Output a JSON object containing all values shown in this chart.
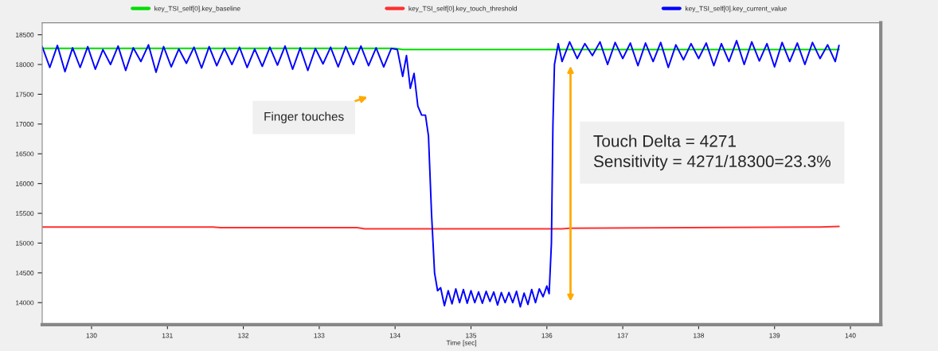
{
  "chart_data": {
    "type": "line",
    "xlabel": "Time [sec]",
    "xlim": [
      129.35,
      140.4
    ],
    "xticks": [
      130,
      131,
      132,
      133,
      134,
      135,
      136,
      137,
      138,
      139,
      140
    ],
    "ylim": [
      13630,
      18700
    ],
    "yticks": [
      14000,
      14500,
      15000,
      15500,
      16000,
      16500,
      17000,
      17500,
      18000,
      18500
    ],
    "grid": false,
    "legend": "top",
    "marker": "none",
    "line_style": "solid",
    "series": [
      {
        "name": "key_TSI_self[0].key_baseline",
        "color": "#00dd00",
        "x": [
          129.35,
          134.0,
          134.1,
          139.85
        ],
        "values": [
          18270,
          18270,
          18250,
          18250
        ]
      },
      {
        "name": "key_TSI_self[0].key_touch_threshold",
        "color": "#ff3030",
        "x": [
          129.35,
          131.6,
          131.7,
          133.5,
          133.6,
          136.2,
          136.3,
          139.6,
          139.85
        ],
        "values": [
          15270,
          15270,
          15260,
          15260,
          15240,
          15240,
          15250,
          15270,
          15280
        ]
      },
      {
        "name": "key_TSI_self[0].key_current_value",
        "color": "#0000ff",
        "x": [
          129.35,
          129.45,
          129.55,
          129.65,
          129.75,
          129.85,
          129.95,
          130.05,
          130.15,
          130.25,
          130.35,
          130.45,
          130.55,
          130.65,
          130.75,
          130.85,
          130.95,
          131.05,
          131.15,
          131.25,
          131.35,
          131.45,
          131.55,
          131.65,
          131.75,
          131.85,
          131.95,
          132.05,
          132.15,
          132.25,
          132.35,
          132.45,
          132.55,
          132.65,
          132.75,
          132.85,
          132.95,
          133.05,
          133.15,
          133.25,
          133.35,
          133.45,
          133.55,
          133.65,
          133.75,
          133.85,
          133.95,
          134.03,
          134.1,
          134.15,
          134.2,
          134.25,
          134.3,
          134.35,
          134.4,
          134.44,
          134.48,
          134.52,
          134.56,
          134.6,
          134.65,
          134.7,
          134.75,
          134.8,
          134.85,
          134.9,
          134.95,
          135.0,
          135.05,
          135.1,
          135.15,
          135.2,
          135.25,
          135.3,
          135.35,
          135.4,
          135.45,
          135.5,
          135.55,
          135.6,
          135.65,
          135.7,
          135.75,
          135.8,
          135.85,
          135.9,
          135.95,
          136.0,
          136.03,
          136.06,
          136.08,
          136.1,
          136.15,
          136.2,
          136.3,
          136.4,
          136.5,
          136.6,
          136.7,
          136.8,
          136.9,
          137.0,
          137.1,
          137.2,
          137.3,
          137.4,
          137.5,
          137.6,
          137.7,
          137.8,
          137.9,
          138.0,
          138.1,
          138.2,
          138.3,
          138.4,
          138.5,
          138.6,
          138.7,
          138.8,
          138.9,
          139.0,
          139.1,
          139.2,
          139.3,
          139.4,
          139.5,
          139.6,
          139.7,
          139.8,
          139.85
        ],
        "values": [
          18300,
          17950,
          18320,
          17880,
          18280,
          17950,
          18300,
          17920,
          18250,
          18000,
          18310,
          17900,
          18280,
          18050,
          18330,
          17870,
          18300,
          17960,
          18260,
          18020,
          18290,
          17940,
          18300,
          17980,
          18270,
          18000,
          18290,
          17950,
          18260,
          17970,
          18290,
          17990,
          18310,
          17920,
          18280,
          17900,
          18270,
          18010,
          18290,
          17960,
          18300,
          18000,
          18310,
          17980,
          18280,
          17960,
          18270,
          18250,
          17800,
          18150,
          17600,
          17850,
          17300,
          17150,
          17150,
          16800,
          15500,
          14500,
          14200,
          14250,
          13950,
          14200,
          13980,
          14230,
          14000,
          14220,
          13990,
          14200,
          14000,
          14180,
          13990,
          14190,
          14020,
          14180,
          13960,
          14170,
          14000,
          14170,
          14000,
          14190,
          13930,
          14160,
          13970,
          14220,
          14000,
          14230,
          14100,
          14280,
          14150,
          15000,
          17000,
          18000,
          18350,
          18050,
          18380,
          18100,
          18350,
          18150,
          18380,
          18000,
          18370,
          18100,
          18360,
          17980,
          18360,
          18050,
          18370,
          17950,
          18330,
          18080,
          18350,
          18100,
          18360,
          17980,
          18350,
          18050,
          18400,
          18000,
          18380,
          18060,
          18350,
          17960,
          18370,
          18050,
          18360,
          18000,
          18370,
          18100,
          18330,
          18050,
          18320
        ]
      }
    ],
    "annotations": [
      "Finger touches",
      "Touch Delta = 4271\nSensitivity = 4271/18300=23.3%"
    ]
  }
}
